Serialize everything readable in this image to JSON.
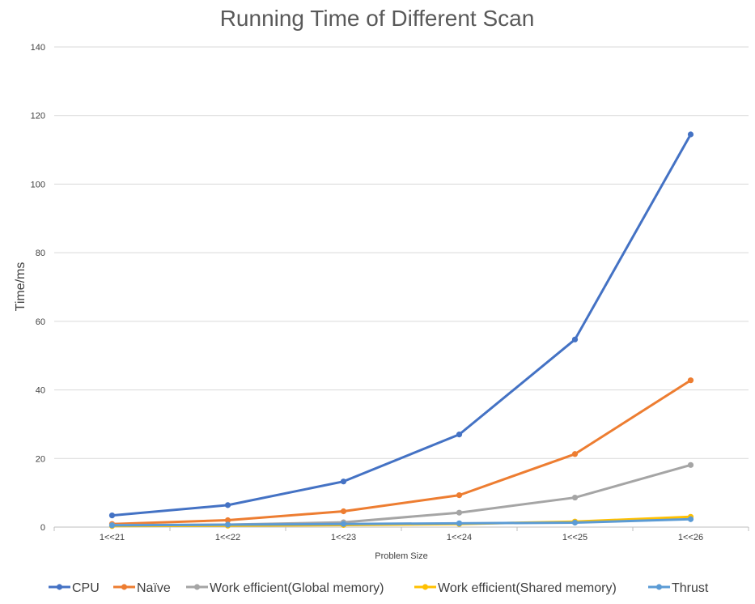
{
  "chart_data": {
    "type": "line",
    "title": "Running Time of Different Scan",
    "xlabel": "Problem Size",
    "ylabel": "Time/ms",
    "categories": [
      "1<<21",
      "1<<22",
      "1<<23",
      "1<<24",
      "1<<25",
      "1<<26"
    ],
    "ylim": [
      0,
      140
    ],
    "yticks": [
      0,
      20,
      40,
      60,
      80,
      100,
      120,
      140
    ],
    "grid": true,
    "legend": "bottom",
    "series": [
      {
        "name": "CPU",
        "color": "#4472c4",
        "values": [
          3.4,
          6.4,
          13.3,
          27.0,
          54.7,
          114.5
        ]
      },
      {
        "name": "Naïve",
        "color": "#ed7d31",
        "values": [
          0.9,
          2.0,
          4.6,
          9.3,
          21.3,
          42.8
        ]
      },
      {
        "name": "Work efficient(Global memory)",
        "color": "#a5a5a5",
        "values": [
          0.6,
          0.7,
          1.4,
          4.2,
          8.6,
          18.1
        ]
      },
      {
        "name": "Work efficient(Shared memory)",
        "color": "#ffc000",
        "values": [
          0.3,
          0.4,
          0.6,
          0.9,
          1.6,
          3.0
        ]
      },
      {
        "name": "Thrust",
        "color": "#5b9bd5",
        "values": [
          0.5,
          0.7,
          0.9,
          1.1,
          1.3,
          2.3
        ]
      }
    ]
  }
}
